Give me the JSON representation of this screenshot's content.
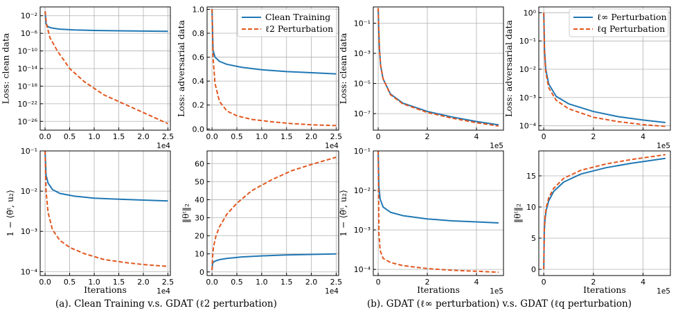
{
  "captions": {
    "a": "(a). Clean Training v.s. GDAT (ℓ2 perturbation)",
    "b": "(b). GDAT (ℓ∞ perturbation) v.s. GDAT (ℓq perturbation)"
  },
  "chart_data": [
    {
      "type": "line",
      "id": "a1",
      "title": "",
      "xlabel": "",
      "ylabel": "Loss: clean data",
      "yscale": "log",
      "xlim": [
        -1000,
        25500
      ],
      "ylim": [
        1e-28,
        1
      ],
      "xticks": [
        0,
        5000,
        10000,
        15000,
        20000,
        25000
      ],
      "xtick_labels": [
        "0.0",
        "0.5",
        "1.0",
        "1.5",
        "2.0",
        "2.5"
      ],
      "x_multiplier": "1e4",
      "yticks": [
        1e-26,
        1e-22,
        1e-18,
        1e-14,
        1e-10,
        1e-06,
        0.01
      ],
      "ytick_labels": [
        "10⁻²⁶",
        "10⁻²²",
        "10⁻¹⁸",
        "10⁻¹⁴",
        "10⁻¹⁰",
        "10⁻⁶",
        "10⁻²"
      ],
      "grid": true,
      "legend": null,
      "series": [
        {
          "name": "Clean Training",
          "color": "#1f77b4",
          "dash": "solid",
          "x": [
            0,
            200,
            600,
            1500,
            3000,
            6000,
            10000,
            15000,
            20000,
            25000
          ],
          "y": [
            0.1,
            0.00015,
            3e-05,
            1.5e-05,
            9e-06,
            6e-06,
            4.5e-06,
            3.7e-06,
            3.2e-06,
            2.8e-06
          ]
        },
        {
          "name": "ℓ2 Perturbation",
          "color": "#e2561d",
          "dash": "dashed",
          "x": [
            0,
            300,
            1000,
            2500,
            5000,
            8000,
            12000,
            16000,
            20000,
            25000
          ],
          "y": [
            0.1,
            0.0001,
            1e-07,
            1e-10,
            1e-14,
            1e-17,
            1e-20,
            1e-22,
            1e-24,
            3e-27
          ]
        }
      ]
    },
    {
      "type": "line",
      "id": "a2",
      "title": "",
      "xlabel": "",
      "ylabel": "Loss: adversarial data",
      "yscale": "linear",
      "xlim": [
        -1000,
        25500
      ],
      "ylim": [
        -0.01,
        1.02
      ],
      "xticks": [
        0,
        5000,
        10000,
        15000,
        20000,
        25000
      ],
      "xtick_labels": [
        "0.0",
        "0.5",
        "1.0",
        "1.5",
        "2.0",
        "2.5"
      ],
      "x_multiplier": "1e4",
      "yticks": [
        0,
        0.2,
        0.4,
        0.6,
        0.8,
        1.0
      ],
      "ytick_labels": [
        "0.0",
        "0.2",
        "0.4",
        "0.6",
        "0.8",
        "1.0"
      ],
      "grid": true,
      "legend": "top-right",
      "series": [
        {
          "name": "Clean Training",
          "color": "#1f77b4",
          "dash": "solid",
          "x": [
            0,
            200,
            600,
            1500,
            3000,
            6000,
            10000,
            15000,
            20000,
            25000
          ],
          "y": [
            1.0,
            0.66,
            0.6,
            0.565,
            0.54,
            0.515,
            0.495,
            0.48,
            0.47,
            0.46
          ]
        },
        {
          "name": "ℓ2 Perturbation",
          "color": "#e2561d",
          "dash": "dashed",
          "x": [
            0,
            200,
            600,
            1500,
            3000,
            5000,
            8000,
            12000,
            16000,
            20000,
            25000
          ],
          "y": [
            1.0,
            0.6,
            0.38,
            0.23,
            0.15,
            0.11,
            0.08,
            0.06,
            0.045,
            0.035,
            0.028
          ]
        }
      ]
    },
    {
      "type": "line",
      "id": "a3",
      "title": "",
      "xlabel": "Iterations",
      "ylabel": "1 − ⟨θ̄ᵗ, u₂⟩",
      "yscale": "log",
      "xlim": [
        -1000,
        25500
      ],
      "ylim": [
        8e-05,
        0.1
      ],
      "xticks": [
        0,
        5000,
        10000,
        15000,
        20000,
        25000
      ],
      "xtick_labels": [
        "0.0",
        "0.5",
        "1.0",
        "1.5",
        "2.0",
        "2.5"
      ],
      "x_multiplier": "1e4",
      "yticks": [
        0.0001,
        0.001,
        0.01,
        0.1
      ],
      "ytick_labels": [
        "10⁻⁴",
        "10⁻³",
        "10⁻²",
        "10⁻¹"
      ],
      "grid": true,
      "legend": null,
      "series": [
        {
          "name": "Clean Training",
          "color": "#1f77b4",
          "dash": "solid",
          "x": [
            0,
            200,
            600,
            1500,
            3000,
            6000,
            10000,
            15000,
            20000,
            25000
          ],
          "y": [
            0.1,
            0.025,
            0.016,
            0.011,
            0.0088,
            0.0075,
            0.0067,
            0.0063,
            0.006,
            0.0057
          ]
        },
        {
          "name": "ℓ2 Perturbation",
          "color": "#e2561d",
          "dash": "dashed",
          "x": [
            0,
            200,
            600,
            1500,
            3000,
            5000,
            8000,
            12000,
            16000,
            20000,
            25000
          ],
          "y": [
            0.1,
            0.01,
            0.003,
            0.0011,
            0.0006,
            0.0004,
            0.00028,
            0.0002,
            0.00017,
            0.00015,
            0.000135
          ]
        }
      ]
    },
    {
      "type": "line",
      "id": "a4",
      "title": "",
      "xlabel": "",
      "ylabel": "‖θᵗ‖₂",
      "yscale": "linear",
      "xlim": [
        -1000,
        25500
      ],
      "ylim": [
        -2,
        67
      ],
      "xticks": [
        0,
        5000,
        10000,
        15000,
        20000,
        25000
      ],
      "xtick_labels": [
        "0.0",
        "0.5",
        "1.0",
        "1.5",
        "2.0",
        "2.5"
      ],
      "x_multiplier": "1e4",
      "yticks": [
        0,
        10,
        20,
        30,
        40,
        50,
        60
      ],
      "ytick_labels": [
        "0",
        "10",
        "20",
        "30",
        "40",
        "50",
        "60"
      ],
      "grid": true,
      "legend": null,
      "series": [
        {
          "name": "Clean Training",
          "color": "#1f77b4",
          "dash": "solid",
          "x": [
            0,
            100,
            300,
            800,
            1500,
            3000,
            6000,
            10000,
            15000,
            20000,
            25000
          ],
          "y": [
            1,
            4.5,
            5.5,
            6.2,
            6.8,
            7.5,
            8.3,
            8.9,
            9.4,
            9.7,
            10.0
          ]
        },
        {
          "name": "ℓ2 Perturbation",
          "color": "#e2561d",
          "dash": "dashed",
          "x": [
            0,
            100,
            300,
            800,
            1500,
            3000,
            5000,
            8000,
            12000,
            16000,
            20000,
            25000
          ],
          "y": [
            1,
            8,
            14,
            20,
            25,
            32,
            38,
            45,
            51,
            56,
            59.5,
            63.5
          ]
        }
      ]
    },
    {
      "type": "line",
      "id": "b1",
      "title": "",
      "xlabel": "",
      "ylabel": "Loss: clean data",
      "yscale": "log",
      "xlim": [
        -20000,
        510000
      ],
      "ylim": [
        8e-09,
        1.2
      ],
      "xticks": [
        0,
        200000,
        400000
      ],
      "xtick_labels": [
        "0",
        "2",
        "4"
      ],
      "x_multiplier": "1e5",
      "yticks": [
        1e-07,
        1e-05,
        0.001,
        0.1
      ],
      "ytick_labels": [
        "10⁻⁷",
        "10⁻⁵",
        "10⁻³",
        "10⁻¹"
      ],
      "grid": true,
      "legend": null,
      "series": [
        {
          "name": "ℓ∞ Perturbation",
          "color": "#1f77b4",
          "dash": "solid",
          "x": [
            0,
            2000,
            5000,
            10000,
            20000,
            50000,
            100000,
            200000,
            300000,
            400000,
            490000
          ],
          "y": [
            1.0,
            0.05,
            0.002,
            0.00015,
            2e-05,
            2e-06,
            5e-07,
            1.4e-07,
            6e-08,
            3e-08,
            1.8e-08
          ]
        },
        {
          "name": "ℓq Perturbation",
          "color": "#e2561d",
          "dash": "dashed",
          "x": [
            0,
            2000,
            5000,
            10000,
            20000,
            50000,
            100000,
            200000,
            300000,
            400000,
            490000
          ],
          "y": [
            1.0,
            0.05,
            0.002,
            0.00015,
            2e-05,
            1.8e-06,
            4.5e-07,
            1.2e-07,
            5e-08,
            2.5e-08,
            1.5e-08
          ]
        }
      ]
    },
    {
      "type": "line",
      "id": "b2",
      "title": "",
      "xlabel": "",
      "ylabel": "Loss: adversarial data",
      "yscale": "log",
      "xlim": [
        -20000,
        510000
      ],
      "ylim": [
        7e-05,
        1.6
      ],
      "xticks": [
        0,
        200000,
        400000
      ],
      "xtick_labels": [
        "0",
        "2",
        "4"
      ],
      "x_multiplier": "1e5",
      "yticks": [
        0.0001,
        0.001,
        0.01,
        0.1,
        1
      ],
      "ytick_labels": [
        "10⁻⁴",
        "10⁻³",
        "10⁻²",
        "10⁻¹",
        "10⁰"
      ],
      "grid": true,
      "legend": "top-right",
      "series": [
        {
          "name": "ℓ∞ Perturbation",
          "color": "#1f77b4",
          "dash": "solid",
          "x": [
            0,
            3000,
            8000,
            20000,
            50000,
            100000,
            200000,
            300000,
            400000,
            490000
          ],
          "y": [
            1.0,
            0.05,
            0.01,
            0.003,
            0.0011,
            0.0006,
            0.00032,
            0.00021,
            0.00016,
            0.00013
          ]
        },
        {
          "name": "ℓq Perturbation",
          "color": "#e2561d",
          "dash": "dashed",
          "x": [
            0,
            3000,
            8000,
            20000,
            50000,
            100000,
            200000,
            300000,
            400000,
            490000
          ],
          "y": [
            1.0,
            0.04,
            0.008,
            0.0022,
            0.0008,
            0.0004,
            0.0002,
            0.00014,
            0.00011,
            9.5e-05
          ]
        }
      ]
    },
    {
      "type": "line",
      "id": "b3",
      "title": "",
      "xlabel": "Iterations",
      "ylabel": "1 − ⟨θ̄ᵗ, u₂⟩",
      "yscale": "log",
      "xlim": [
        -20000,
        510000
      ],
      "ylim": [
        7e-05,
        0.1
      ],
      "xticks": [
        0,
        200000,
        400000
      ],
      "xtick_labels": [
        "0",
        "2",
        "4"
      ],
      "x_multiplier": "1e5",
      "yticks": [
        0.0001,
        0.001,
        0.01,
        0.1
      ],
      "ytick_labels": [
        "10⁻⁴",
        "10⁻³",
        "10⁻²",
        "10⁻¹"
      ],
      "grid": true,
      "legend": null,
      "series": [
        {
          "name": "ℓ∞ Perturbation",
          "color": "#1f77b4",
          "dash": "solid",
          "x": [
            0,
            3000,
            8000,
            20000,
            50000,
            100000,
            200000,
            300000,
            400000,
            490000
          ],
          "y": [
            0.1,
            0.012,
            0.006,
            0.0038,
            0.0028,
            0.0023,
            0.0019,
            0.0017,
            0.0016,
            0.0015
          ]
        },
        {
          "name": "ℓq Perturbation",
          "color": "#e2561d",
          "dash": "dashed",
          "x": [
            0,
            3000,
            8000,
            20000,
            50000,
            100000,
            200000,
            300000,
            400000,
            490000
          ],
          "y": [
            0.1,
            0.0008,
            0.0003,
            0.00019,
            0.00015,
            0.000125,
            0.000105,
            9.5e-05,
            9e-05,
            8.5e-05
          ]
        }
      ]
    },
    {
      "type": "line",
      "id": "b4",
      "title": "",
      "xlabel": "Iterations",
      "ylabel": "‖θᵗ‖₂",
      "yscale": "linear",
      "xlim": [
        -20000,
        510000
      ],
      "ylim": [
        -1,
        19
      ],
      "xticks": [
        0,
        200000,
        400000
      ],
      "xtick_labels": [
        "0",
        "2",
        "4"
      ],
      "x_multiplier": "1e5",
      "yticks": [
        0,
        5,
        10,
        15
      ],
      "ytick_labels": [
        "0",
        "5",
        "10",
        "15"
      ],
      "grid": true,
      "legend": null,
      "series": [
        {
          "name": "ℓ∞ Perturbation",
          "color": "#1f77b4",
          "dash": "solid",
          "x": [
            0,
            2000,
            5000,
            10000,
            20000,
            40000,
            80000,
            150000,
            250000,
            350000,
            490000
          ],
          "y": [
            0,
            6,
            8,
            9.5,
            11,
            12.5,
            14,
            15.3,
            16.3,
            17.0,
            17.8
          ]
        },
        {
          "name": "ℓq Perturbation",
          "color": "#e2561d",
          "dash": "dashed",
          "x": [
            0,
            2000,
            5000,
            10000,
            20000,
            40000,
            80000,
            150000,
            250000,
            350000,
            490000
          ],
          "y": [
            0,
            6.2,
            8.3,
            9.9,
            11.5,
            13,
            14.6,
            15.9,
            16.9,
            17.6,
            18.4
          ]
        }
      ]
    }
  ]
}
